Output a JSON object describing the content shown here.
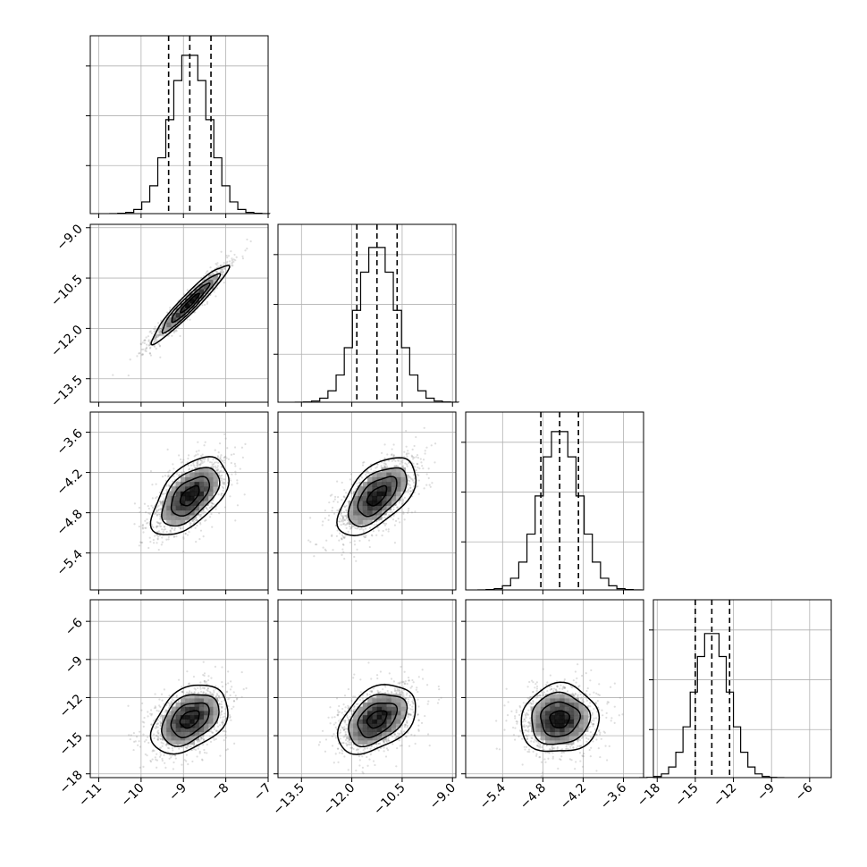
{
  "chart_data": {
    "type": "corner",
    "parameters": [
      {
        "range": [
          -11.2,
          -7.0
        ],
        "ticks": [
          -11,
          -10,
          -9,
          -8,
          -7
        ],
        "tick_labels": [
          "−11",
          "−10",
          "−9",
          "−8",
          "−7"
        ],
        "mean": -8.85,
        "sd": 0.45,
        "quantiles": [
          -9.35,
          -8.85,
          -8.35
        ],
        "hist_max_frac": 0.89
      },
      {
        "range": [
          -14.2,
          -8.9
        ],
        "ticks": [
          -13.5,
          -12.0,
          -10.5,
          -9.0
        ],
        "tick_labels": [
          "−13.5",
          "−12.0",
          "−10.5",
          "−9.0"
        ],
        "mean": -11.25,
        "sd": 0.58,
        "quantiles": [
          -11.85,
          -11.25,
          -10.65
        ],
        "hist_max_frac": 0.87
      },
      {
        "range": [
          -5.95,
          -3.3
        ],
        "ticks": [
          -5.4,
          -4.8,
          -4.2,
          -3.6
        ],
        "tick_labels": [
          "−5.4",
          "−4.8",
          "−4.2",
          "−3.6"
        ],
        "mean": -4.55,
        "sd": 0.29,
        "quantiles": [
          -4.83,
          -4.55,
          -4.27
        ],
        "hist_max_frac": 0.89
      },
      {
        "range": [
          -18.3,
          -4.3
        ],
        "ticks": [
          -18,
          -15,
          -12,
          -9,
          -6
        ],
        "tick_labels": [
          "−18",
          "−15",
          "−12",
          "−9",
          "−6"
        ],
        "mean": -13.7,
        "sd": 1.35,
        "quantiles": [
          -15.0,
          -13.7,
          -12.3
        ],
        "hist_max_frac": 0.81
      }
    ],
    "pairs": [
      {
        "row": 1,
        "col": 0,
        "correlation": 0.95
      },
      {
        "row": 2,
        "col": 0,
        "correlation": 0.55
      },
      {
        "row": 2,
        "col": 1,
        "correlation": 0.58
      },
      {
        "row": 3,
        "col": 0,
        "correlation": 0.38
      },
      {
        "row": 3,
        "col": 1,
        "correlation": 0.4
      },
      {
        "row": 3,
        "col": 2,
        "correlation": 0.05
      }
    ],
    "hist_y_ticks_frac": [
      0.27,
      0.55,
      0.83
    ],
    "quantile_levels": [
      0.16,
      0.5,
      0.84
    ],
    "contour_sigma_levels": [
      0.5,
      1.0,
      1.5,
      2.0
    ],
    "grid": true,
    "colors": {
      "line": "#000000",
      "samples": "#8a8a8a",
      "grid": "#b0b0b0"
    }
  }
}
